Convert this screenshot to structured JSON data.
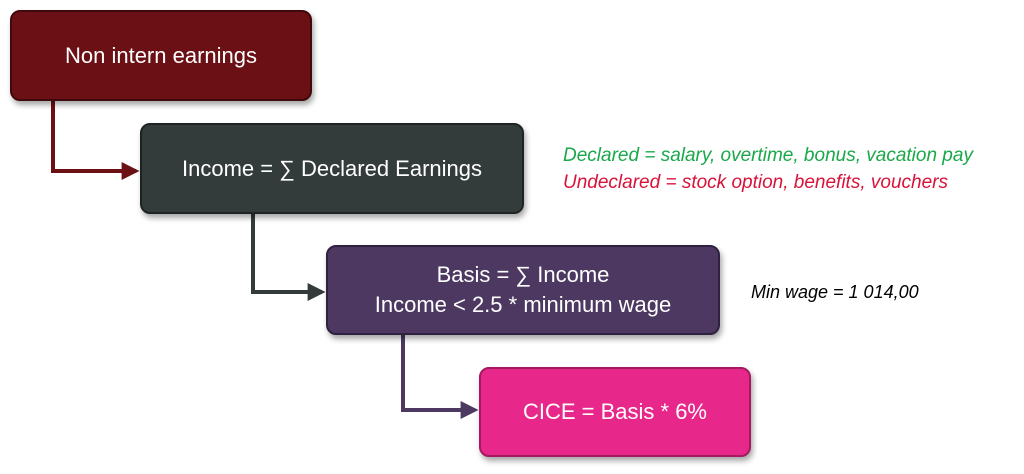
{
  "boxes": [
    {
      "id": "non-intern-earnings",
      "lines": [
        "Non intern earnings"
      ],
      "fill": "#6b1015",
      "border": "#3f0a0d"
    },
    {
      "id": "income",
      "lines": [
        "Income = ∑ Declared Earnings"
      ],
      "fill": "#333b3b",
      "border": "#1e2424"
    },
    {
      "id": "basis",
      "lines": [
        "Basis = ∑ Income",
        "Income < 2.5 * minimum wage"
      ],
      "fill": "#4c3860",
      "border": "#2f2240"
    },
    {
      "id": "cice",
      "lines": [
        "CICE = Basis * 6%"
      ],
      "fill": "#e8278a",
      "border": "#a4195f"
    }
  ],
  "notes": {
    "declared": {
      "text": "Declared = salary, overtime, bonus, vacation pay",
      "color": "#1aa84a"
    },
    "undeclared": {
      "text": "Undeclared  = stock option, benefits, vouchers",
      "color": "#d9123a"
    },
    "min_wage": {
      "text": "Min wage  = 1 014,00"
    }
  },
  "connector_colors": [
    "#6b1015",
    "#333b3b",
    "#4c3860"
  ]
}
